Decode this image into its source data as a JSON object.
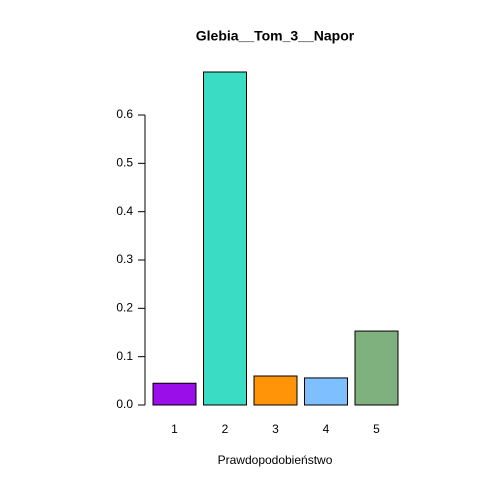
{
  "chart_data": {
    "type": "bar",
    "title": "Glebia__Tom_3__Napor",
    "xlabel": "Prawdopodobieństwo",
    "categories": [
      "1",
      "2",
      "3",
      "4",
      "5"
    ],
    "values": [
      0.045,
      0.689,
      0.06,
      0.056,
      0.153
    ],
    "colors": [
      "#9a0eea",
      "#3addc4",
      "#ff9408",
      "#7ec0ff",
      "#7fb17f"
    ],
    "ylim": [
      0,
      0.7
    ],
    "yticks": [
      {
        "value": 0,
        "label": "0.0"
      },
      0.1,
      0.2,
      0.3,
      0.4,
      0.5,
      0.6
    ]
  }
}
